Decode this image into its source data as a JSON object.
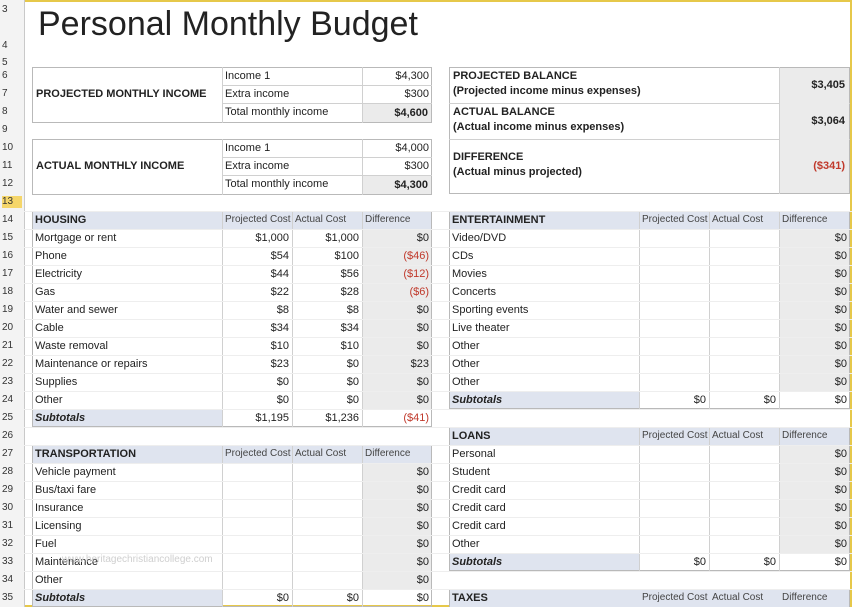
{
  "title": "Personal Monthly Budget",
  "row_numbers": [
    "3",
    "4",
    "5",
    "6",
    "7",
    "8",
    "9",
    "10",
    "11",
    "12",
    "13",
    "14",
    "15",
    "16",
    "17",
    "18",
    "19",
    "20",
    "21",
    "22",
    "23",
    "24",
    "25",
    "26",
    "27",
    "28",
    "29",
    "30",
    "31",
    "32",
    "33",
    "34",
    "35"
  ],
  "projected_income": {
    "label": "PROJECTED MONTHLY INCOME",
    "rows": [
      {
        "name": "Income 1",
        "value": "$4,300"
      },
      {
        "name": "Extra income",
        "value": "$300"
      },
      {
        "name": "Total monthly income",
        "value": "$4,600"
      }
    ]
  },
  "actual_income": {
    "label": "ACTUAL MONTHLY INCOME",
    "rows": [
      {
        "name": "Income 1",
        "value": "$4,000"
      },
      {
        "name": "Extra income",
        "value": "$300"
      },
      {
        "name": "Total monthly income",
        "value": "$4,300"
      }
    ]
  },
  "balance": [
    {
      "line1": "PROJECTED BALANCE",
      "line2": "(Projected income minus expenses)",
      "value": "$3,405"
    },
    {
      "line1": "ACTUAL BALANCE",
      "line2": "(Actual income minus expenses)",
      "value": "$3,064"
    },
    {
      "line1": "DIFFERENCE",
      "line2": "(Actual minus projected)",
      "value": "($341)"
    }
  ],
  "columns": {
    "projected": "Projected Cost",
    "actual": "Actual Cost",
    "difference": "Difference"
  },
  "housing": {
    "title": "HOUSING",
    "rows": [
      {
        "name": "Mortgage or rent",
        "projected": "$1,000",
        "actual": "$1,000",
        "diff": "$0"
      },
      {
        "name": "Phone",
        "projected": "$54",
        "actual": "$100",
        "diff": "($46)"
      },
      {
        "name": "Electricity",
        "projected": "$44",
        "actual": "$56",
        "diff": "($12)"
      },
      {
        "name": "Gas",
        "projected": "$22",
        "actual": "$28",
        "diff": "($6)"
      },
      {
        "name": "Water and sewer",
        "projected": "$8",
        "actual": "$8",
        "diff": "$0"
      },
      {
        "name": "Cable",
        "projected": "$34",
        "actual": "$34",
        "diff": "$0"
      },
      {
        "name": "Waste removal",
        "projected": "$10",
        "actual": "$10",
        "diff": "$0"
      },
      {
        "name": "Maintenance or repairs",
        "projected": "$23",
        "actual": "$0",
        "diff": "$23"
      },
      {
        "name": "Supplies",
        "projected": "$0",
        "actual": "$0",
        "diff": "$0"
      },
      {
        "name": "Other",
        "projected": "$0",
        "actual": "$0",
        "diff": "$0"
      }
    ],
    "subtotal": {
      "label": "Subtotals",
      "projected": "$1,195",
      "actual": "$1,236",
      "diff": "($41)"
    }
  },
  "transportation": {
    "title": "TRANSPORTATION",
    "rows": [
      {
        "name": "Vehicle payment",
        "projected": "",
        "actual": "",
        "diff": "$0"
      },
      {
        "name": "Bus/taxi fare",
        "projected": "",
        "actual": "",
        "diff": "$0"
      },
      {
        "name": "Insurance",
        "projected": "",
        "actual": "",
        "diff": "$0"
      },
      {
        "name": "Licensing",
        "projected": "",
        "actual": "",
        "diff": "$0"
      },
      {
        "name": "Fuel",
        "projected": "",
        "actual": "",
        "diff": "$0"
      },
      {
        "name": "Maintenance",
        "projected": "",
        "actual": "",
        "diff": "$0"
      },
      {
        "name": "Other",
        "projected": "",
        "actual": "",
        "diff": "$0"
      }
    ],
    "subtotal": {
      "label": "Subtotals",
      "projected": "$0",
      "actual": "$0",
      "diff": "$0"
    }
  },
  "entertainment": {
    "title": "ENTERTAINMENT",
    "rows": [
      {
        "name": "Video/DVD",
        "projected": "",
        "actual": "",
        "diff": "$0"
      },
      {
        "name": "CDs",
        "projected": "",
        "actual": "",
        "diff": "$0"
      },
      {
        "name": "Movies",
        "projected": "",
        "actual": "",
        "diff": "$0"
      },
      {
        "name": "Concerts",
        "projected": "",
        "actual": "",
        "diff": "$0"
      },
      {
        "name": "Sporting events",
        "projected": "",
        "actual": "",
        "diff": "$0"
      },
      {
        "name": "Live theater",
        "projected": "",
        "actual": "",
        "diff": "$0"
      },
      {
        "name": "Other",
        "projected": "",
        "actual": "",
        "diff": "$0"
      },
      {
        "name": "Other",
        "projected": "",
        "actual": "",
        "diff": "$0"
      },
      {
        "name": "Other",
        "projected": "",
        "actual": "",
        "diff": "$0"
      }
    ],
    "subtotal": {
      "label": "Subtotals",
      "projected": "$0",
      "actual": "$0",
      "diff": "$0"
    }
  },
  "loans": {
    "title": "LOANS",
    "rows": [
      {
        "name": "Personal",
        "projected": "",
        "actual": "",
        "diff": "$0"
      },
      {
        "name": "Student",
        "projected": "",
        "actual": "",
        "diff": "$0"
      },
      {
        "name": "Credit card",
        "projected": "",
        "actual": "",
        "diff": "$0"
      },
      {
        "name": "Credit card",
        "projected": "",
        "actual": "",
        "diff": "$0"
      },
      {
        "name": "Credit card",
        "projected": "",
        "actual": "",
        "diff": "$0"
      },
      {
        "name": "Other",
        "projected": "",
        "actual": "",
        "diff": "$0"
      }
    ],
    "subtotal": {
      "label": "Subtotals",
      "projected": "$0",
      "actual": "$0",
      "diff": "$0"
    }
  },
  "taxes": {
    "title": "TAXES"
  },
  "colors": {
    "header_bar": "#dfe4ef",
    "negative": "#c0392b",
    "selected_row": "#f5d66a",
    "frame": "#e6c84a"
  }
}
